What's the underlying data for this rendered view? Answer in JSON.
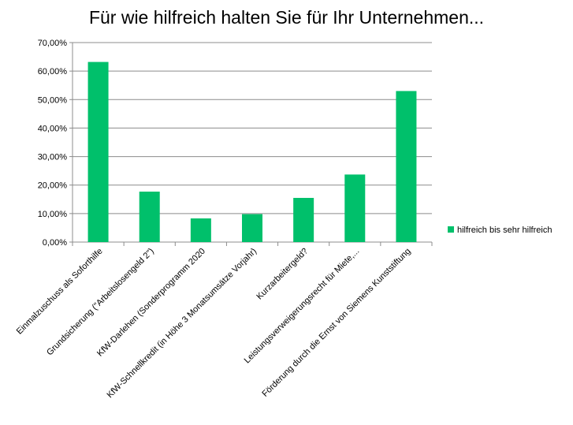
{
  "chart_data": {
    "type": "bar",
    "title": "Für wie hilfreich halten Sie für Ihr Unternehmen...",
    "categories": [
      "Einmalzuschuss als Soforthilfe",
      "Grundsicherung (\"Arbeitslosengeld 2\")",
      "KfW-Darlehen (Sonderprogramm 2020",
      "KfW-Schnellkredit (in Höhe 3 Monatsumsätze Vorjahr)",
      "Kurzarbeitergeld?",
      "Leistungsverweigerungsrecht für Miete,...",
      "Förderung durch die Ernst von Siemens Kunststiftung"
    ],
    "series": [
      {
        "name": "hilfreich bis sehr hilfreich",
        "values": [
          0.632,
          0.177,
          0.083,
          0.098,
          0.155,
          0.237,
          0.53
        ]
      }
    ],
    "yticks": [
      "0,00%",
      "10,00%",
      "20,00%",
      "30,00%",
      "40,00%",
      "50,00%",
      "60,00%",
      "70,00%"
    ],
    "ylim": [
      0,
      0.7
    ],
    "grid": true,
    "legend_position": "right",
    "bar_color": "#00c06b"
  }
}
